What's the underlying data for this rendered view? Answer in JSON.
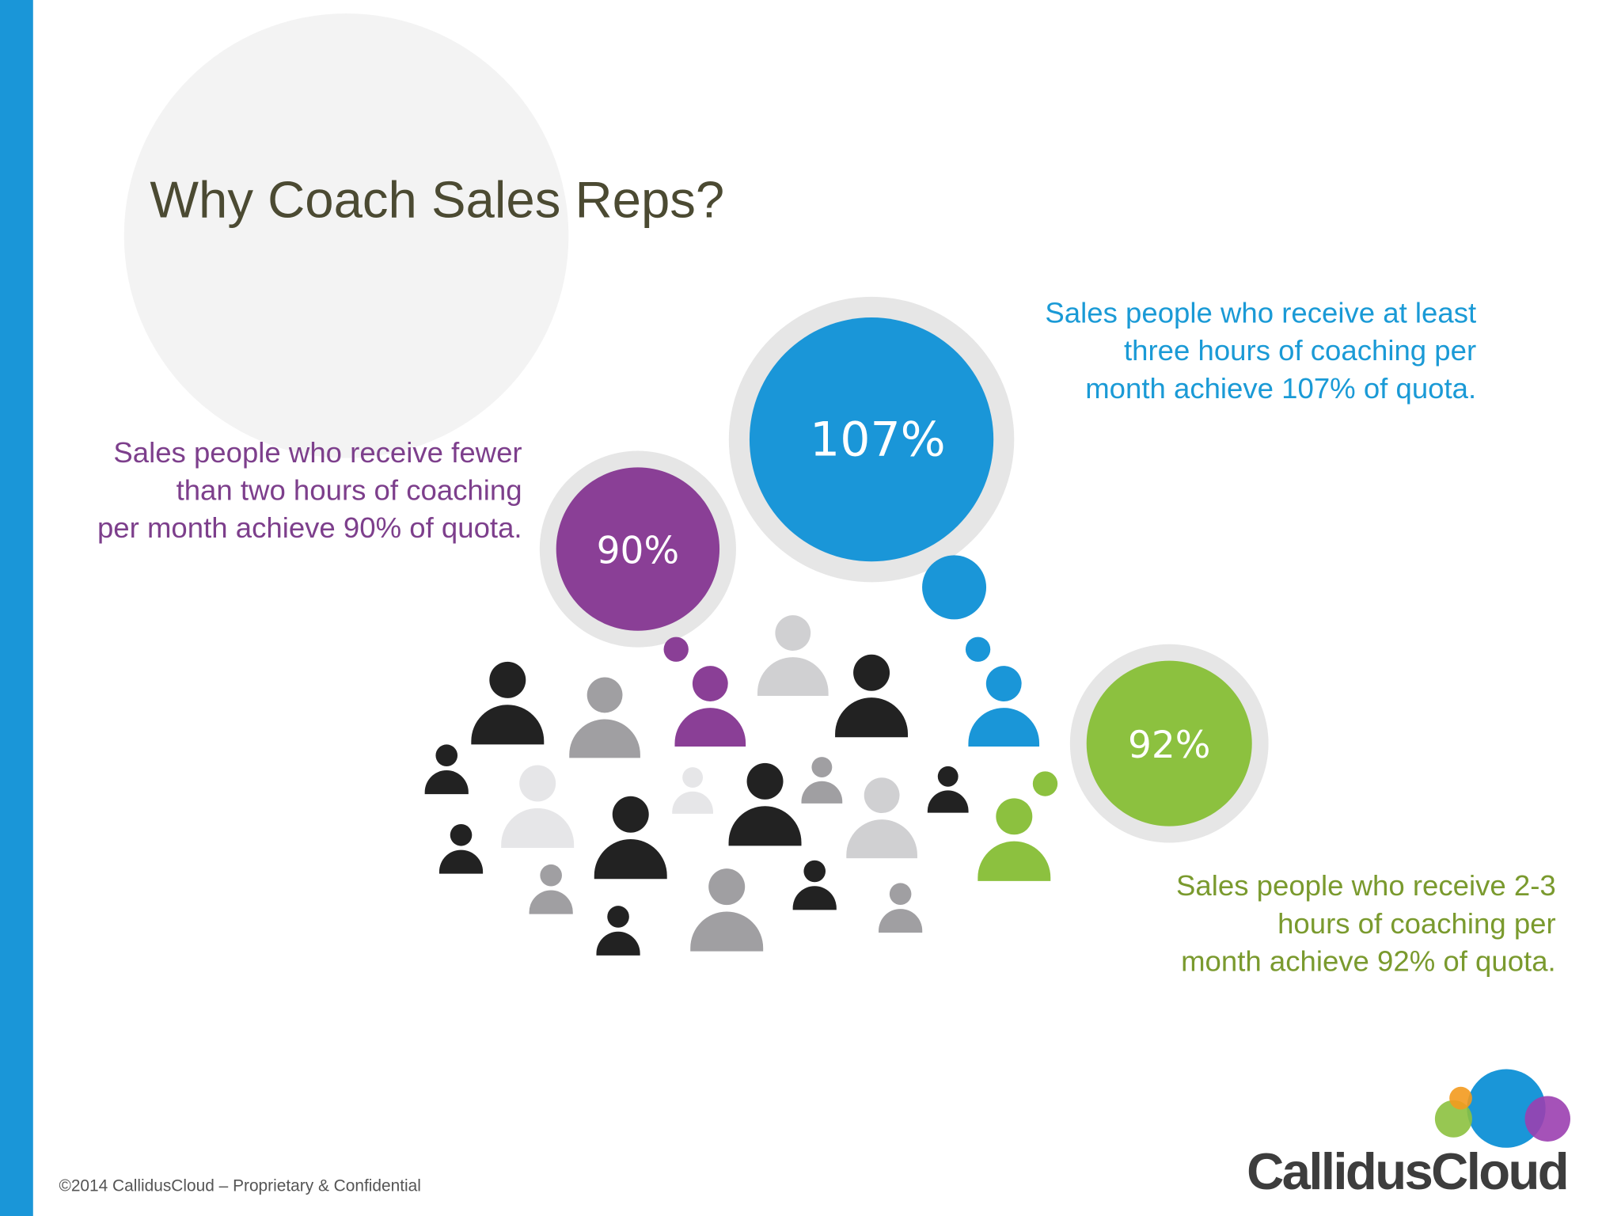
{
  "slide": {
    "title": "Why Coach Sales Reps?",
    "callouts": [
      {
        "value": "90%",
        "caption": [
          "Sales people who receive fewer",
          "than two hours of coaching",
          "per month achieve 90% of quota."
        ]
      },
      {
        "value": "107%",
        "caption": [
          "Sales people who receive at least",
          "three hours of coaching per",
          "month achieve 107% of quota."
        ]
      },
      {
        "value": "92%",
        "caption": [
          "Sales people who receive 2-3",
          "hours of coaching per",
          "month achieve 92% of quota."
        ]
      }
    ],
    "footer": "©2014 CallidusCloud – Proprietary & Confidential",
    "logo": "CallidusCloud"
  }
}
